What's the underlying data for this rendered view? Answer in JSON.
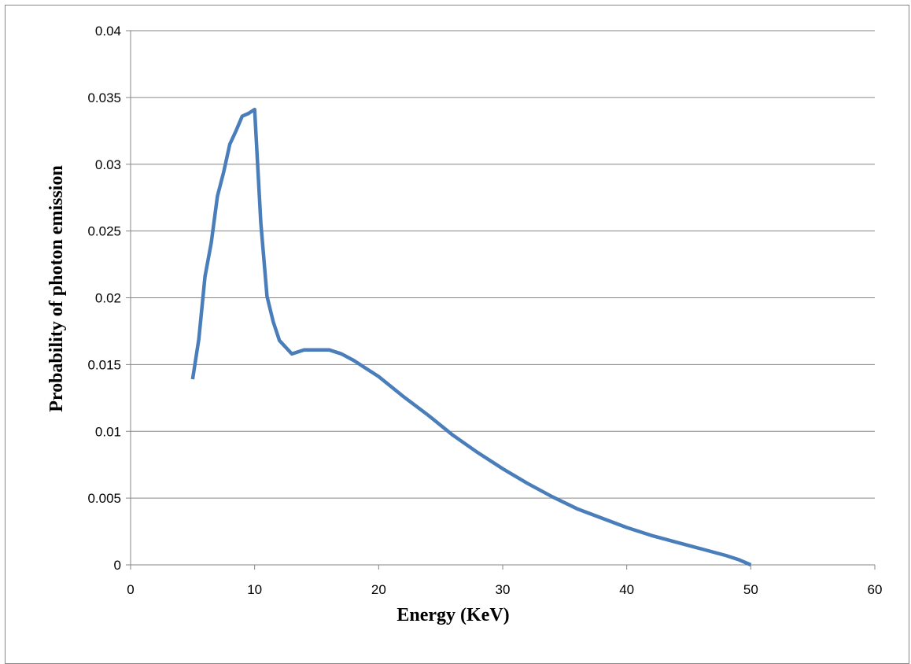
{
  "chart_data": {
    "type": "line",
    "title": "",
    "xlabel": "Energy (KeV)",
    "ylabel": "Probability of photon emission",
    "xlim": [
      0,
      60
    ],
    "ylim": [
      0,
      0.04
    ],
    "x_ticks": [
      0,
      10,
      20,
      30,
      40,
      50,
      60
    ],
    "x_tick_labels": [
      "0",
      "10",
      "20",
      "30",
      "40",
      "50",
      "60"
    ],
    "y_ticks": [
      0,
      0.005,
      0.01,
      0.015,
      0.02,
      0.025,
      0.03,
      0.035,
      0.04
    ],
    "y_tick_labels": [
      "0",
      "0.005",
      "0.01",
      "0.015",
      "0.02",
      "0.025",
      "0.03",
      "0.035",
      "0.04"
    ],
    "grid": "horizontal",
    "legend": "none",
    "series": [
      {
        "color": "#4a7ebb",
        "x": [
          5,
          5.5,
          6,
          6.5,
          7,
          7.5,
          8,
          8.5,
          9,
          9.5,
          10,
          10.5,
          11,
          11.5,
          12,
          13,
          14,
          15,
          16,
          17,
          18,
          19,
          20,
          22,
          24,
          26,
          28,
          30,
          32,
          34,
          36,
          38,
          40,
          42,
          44,
          46,
          48,
          49,
          50
        ],
        "y": [
          0.0139,
          0.0169,
          0.0216,
          0.0241,
          0.0276,
          0.0294,
          0.0315,
          0.0325,
          0.0336,
          0.0338,
          0.0341,
          0.0256,
          0.0201,
          0.0182,
          0.0168,
          0.0158,
          0.0161,
          0.0161,
          0.0161,
          0.0158,
          0.0153,
          0.0147,
          0.0141,
          0.0126,
          0.0112,
          0.0097,
          0.0084,
          0.0072,
          0.0061,
          0.0051,
          0.0042,
          0.0035,
          0.0028,
          0.0022,
          0.0017,
          0.0012,
          0.0007,
          0.0004,
          0.0
        ]
      }
    ]
  }
}
